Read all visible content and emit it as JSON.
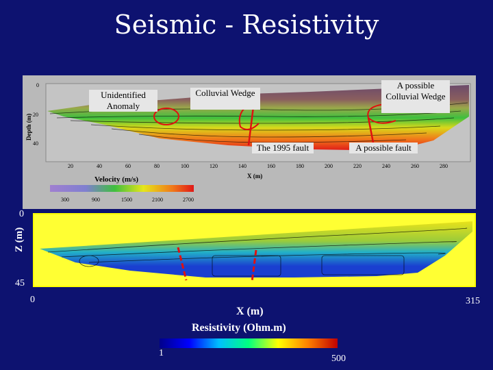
{
  "title": "Seismic - Resistivity",
  "seismic": {
    "depth_label": "Depth (m)",
    "depth_ticks": [
      "0",
      "20",
      "40"
    ],
    "x_ticks": [
      "20",
      "40",
      "60",
      "80",
      "100",
      "120",
      "140",
      "160",
      "180",
      "200",
      "220",
      "240",
      "260",
      "280"
    ],
    "x_label": "X (m)",
    "velocity_label": "Velocity (m/s)",
    "velocity_ticks": [
      "300",
      "900",
      "1500",
      "2100",
      "2700"
    ],
    "callouts": {
      "unidentified": "Unidentified Anomaly",
      "colluvial_wedge": "Colluvial Wedge",
      "possible_colluvial_wedge": "A possible Colluvial Wedge",
      "fault_1995": "The 1995 fault",
      "possible_fault": "A possible fault"
    }
  },
  "resistivity": {
    "z_label": "Z (m)",
    "z_top": "0",
    "z_bottom": "45",
    "x_start": "0",
    "x_end": "315",
    "x_label": "X (m)",
    "res_label": "Resistivity (Ohm.m)",
    "scale_min": "1",
    "scale_max": "500"
  }
}
